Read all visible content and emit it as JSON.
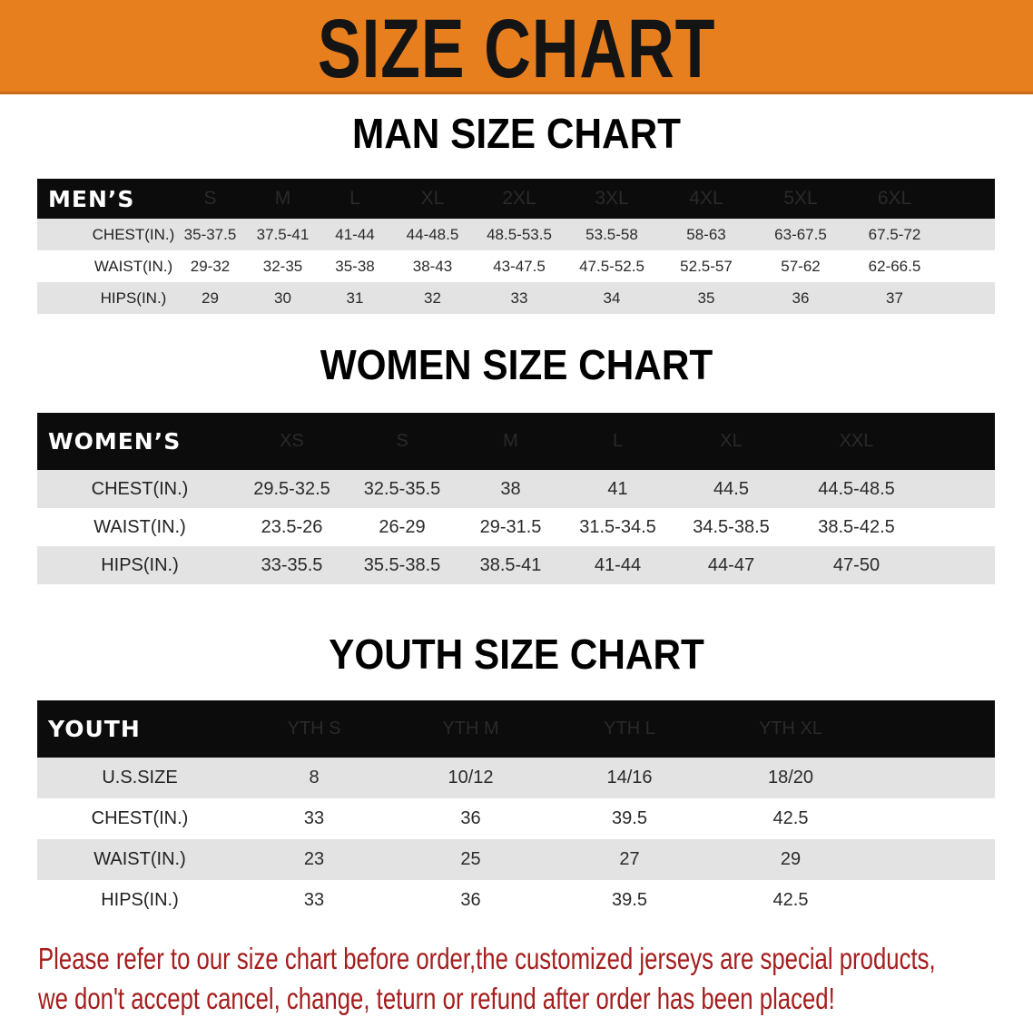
{
  "title": "SIZE CHART",
  "colors": {
    "banner": "#e87f1e",
    "header_row": "#0c0c0c",
    "stripe": "#e3e3e3",
    "notice": "#a51d1d"
  },
  "men": {
    "section_title": "MAN SIZE CHART",
    "header_label": "MEN’S",
    "sizes": [
      "S",
      "M",
      "L",
      "XL",
      "2XL",
      "3XL",
      "4XL",
      "5XL",
      "6XL"
    ],
    "rows": [
      {
        "label": "CHEST(IN.)",
        "values": [
          "35-37.5",
          "37.5-41",
          "41-44",
          "44-48.5",
          "48.5-53.5",
          "53.5-58",
          "58-63",
          "63-67.5",
          "67.5-72"
        ]
      },
      {
        "label": "WAIST(IN.)",
        "values": [
          "29-32",
          "32-35",
          "35-38",
          "38-43",
          "43-47.5",
          "47.5-52.5",
          "52.5-57",
          "57-62",
          "62-66.5"
        ]
      },
      {
        "label": "HIPS(IN.)",
        "values": [
          "29",
          "30",
          "31",
          "32",
          "33",
          "34",
          "35",
          "36",
          "37"
        ]
      }
    ]
  },
  "women": {
    "section_title": "WOMEN SIZE CHART",
    "header_label": "WOMEN’S",
    "sizes": [
      "XS",
      "S",
      "M",
      "L",
      "XL",
      "XXL"
    ],
    "rows": [
      {
        "label": "CHEST(IN.)",
        "values": [
          "29.5-32.5",
          "32.5-35.5",
          "38",
          "41",
          "44.5",
          "44.5-48.5"
        ]
      },
      {
        "label": "WAIST(IN.)",
        "values": [
          "23.5-26",
          "26-29",
          "29-31.5",
          "31.5-34.5",
          "34.5-38.5",
          "38.5-42.5"
        ]
      },
      {
        "label": "HIPS(IN.)",
        "values": [
          "33-35.5",
          "35.5-38.5",
          "38.5-41",
          "41-44",
          "44-47",
          "47-50"
        ]
      }
    ]
  },
  "youth": {
    "section_title": "YOUTH SIZE CHART",
    "header_label": "YOUTH",
    "sizes": [
      "YTH S",
      "YTH M",
      "YTH L",
      "YTH XL"
    ],
    "rows": [
      {
        "label": "U.S.SIZE",
        "values": [
          "8",
          "10/12",
          "14/16",
          "18/20"
        ]
      },
      {
        "label": "CHEST(IN.)",
        "values": [
          "33",
          "36",
          "39.5",
          "42.5"
        ]
      },
      {
        "label": "WAIST(IN.)",
        "values": [
          "23",
          "25",
          "27",
          "29"
        ]
      },
      {
        "label": "HIPS(IN.)",
        "values": [
          "33",
          "36",
          "39.5",
          "42.5"
        ]
      }
    ]
  },
  "notice": {
    "line1": "Please refer to our size chart before order,the customized jerseys are special products,",
    "line2": "we don't accept cancel, change, teturn or refund after order has been placed!"
  }
}
